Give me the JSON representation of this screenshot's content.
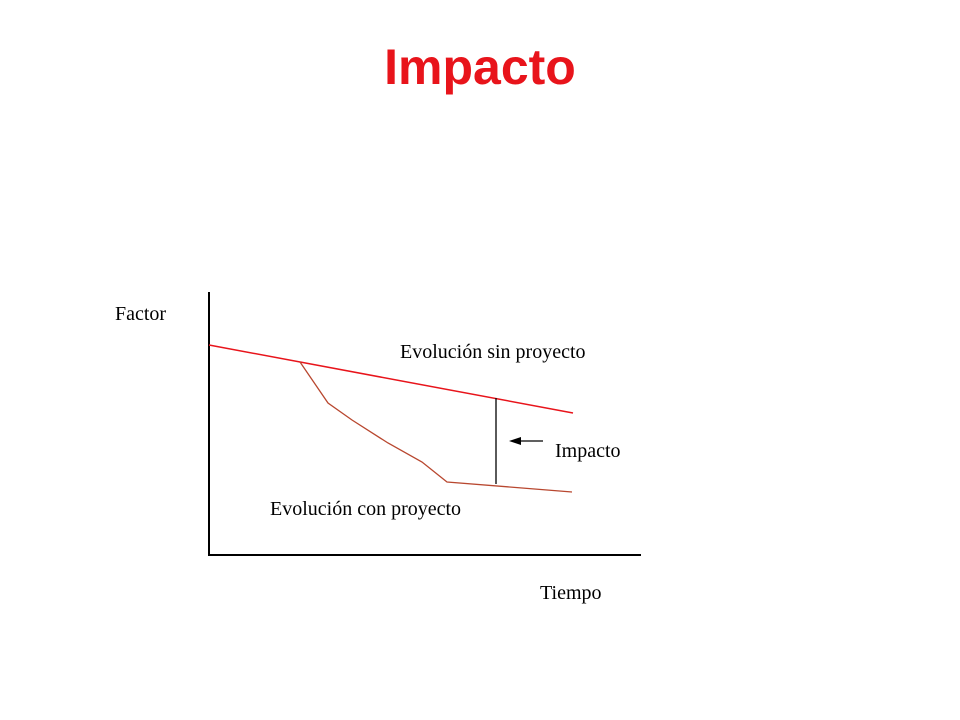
{
  "title": "Impacto",
  "labels": {
    "y_axis": "Factor",
    "x_axis": "Tiempo",
    "without_project": "Evolución sin proyecto",
    "with_project": "Evolución con proyecto",
    "impact": "Impacto"
  },
  "colors": {
    "title": "#e8141b",
    "without_project_line": "#e8141b",
    "with_project_line": "#b8472f",
    "axes": "#000000"
  }
}
